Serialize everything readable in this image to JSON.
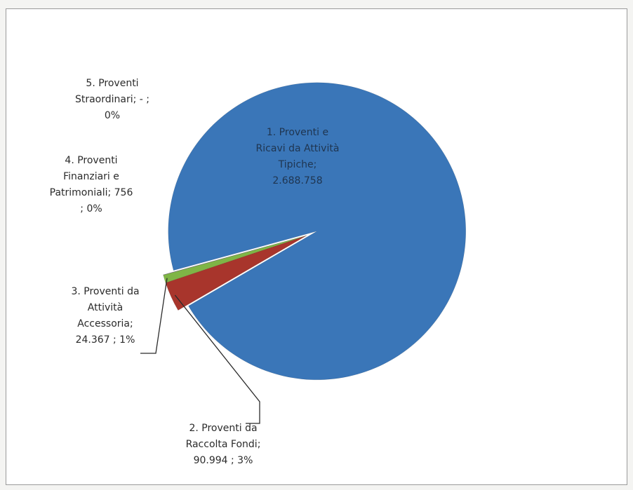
{
  "chart_data": {
    "type": "pie",
    "title": "",
    "slices": [
      {
        "label_lines": [
          "1. Proventi e",
          "Ricavi da Attività",
          "Tipiche;",
          "2.688.758"
        ],
        "value": 2688758,
        "color": "#3a76b8"
      },
      {
        "label_lines": [
          "2. Proventi da",
          "Raccolta Fondi;",
          "90.994 ; 3%"
        ],
        "value": 90994,
        "color": "#a8352c"
      },
      {
        "label_lines": [
          "3. Proventi da",
          "Attività",
          "Accessoria;",
          "24.367 ; 1%"
        ],
        "value": 24367,
        "color": "#7fb546"
      },
      {
        "label_lines": [
          "4. Proventi",
          "Finanziari e",
          "Patrimoniali;  756",
          "; 0%"
        ],
        "value": 756,
        "color": "#6b4a8c"
      },
      {
        "label_lines": [
          "5. Proventi",
          "Straordinari;  -   ;",
          "0%"
        ],
        "value": 0,
        "color": "#3aa3c0"
      }
    ],
    "grid": false,
    "legend": "none"
  }
}
